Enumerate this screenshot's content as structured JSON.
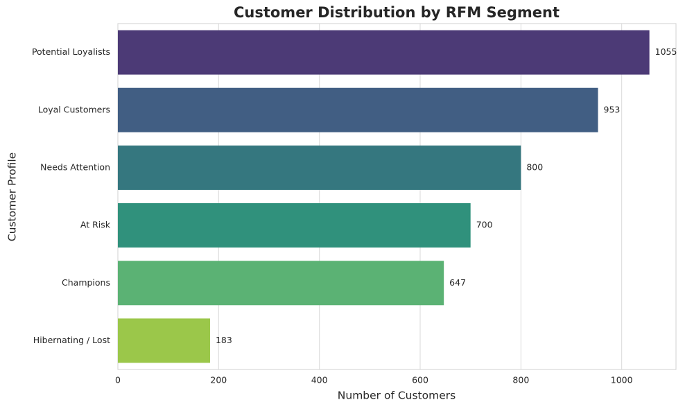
{
  "chart_data": {
    "type": "barh",
    "title": "Customer Distribution by RFM Segment",
    "xlabel": "Number of Customers",
    "ylabel": "Customer Profile",
    "categories": [
      "Potential Loyalists",
      "Loyal Customers",
      "Needs Attention",
      "At Risk",
      "Champions",
      "Hibernating / Lost"
    ],
    "values": [
      1055,
      953,
      800,
      700,
      647,
      183
    ],
    "colors": [
      "#4c3a76",
      "#415e83",
      "#35777f",
      "#30917c",
      "#5bb274",
      "#9bc74a"
    ],
    "xlim": [
      0,
      1107.75
    ],
    "xticks": [
      0,
      200,
      400,
      600,
      800,
      1000
    ],
    "grid": true
  }
}
